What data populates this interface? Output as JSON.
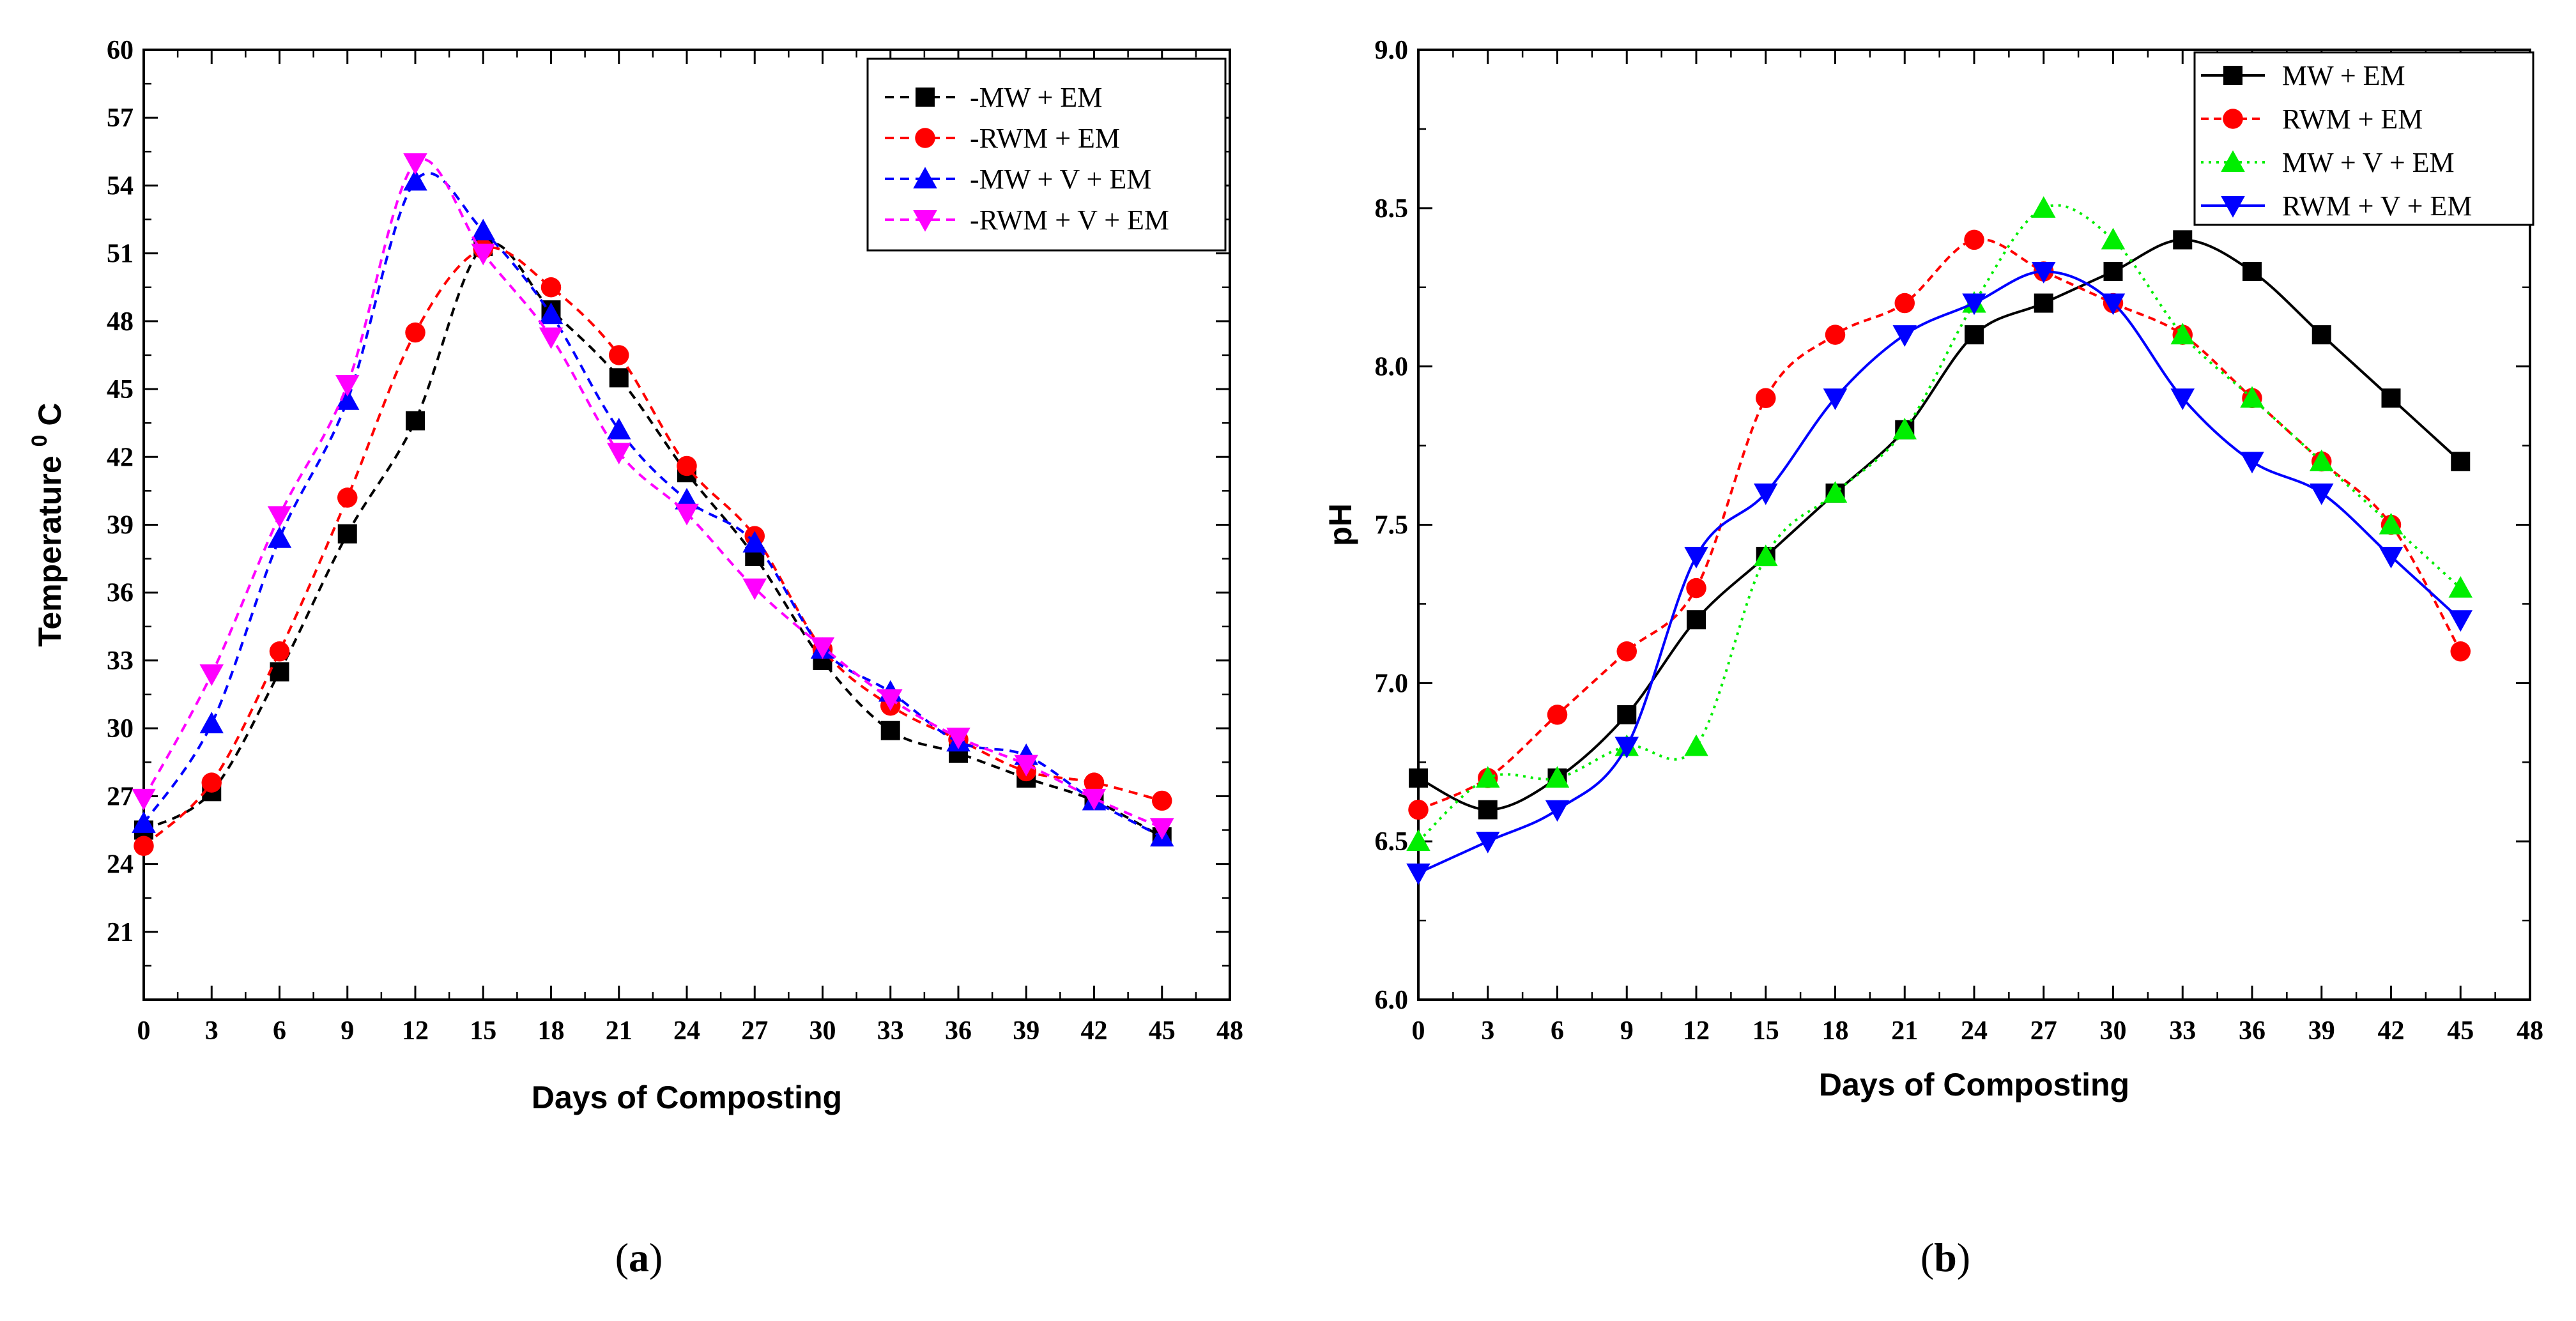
{
  "chart_data": [
    {
      "panel_label": "a",
      "type": "line",
      "xlabel": "Days of Composting",
      "ylabel": "Temperature ⁰ C",
      "ylabel_main": "Temperature",
      "ylabel_sup": "0",
      "ylabel_unit": "C",
      "xlim": [
        0,
        48
      ],
      "ylim": [
        18,
        60
      ],
      "xticks": [
        0,
        3,
        6,
        9,
        12,
        15,
        18,
        21,
        24,
        27,
        30,
        33,
        36,
        39,
        42,
        45,
        48
      ],
      "yticks": [
        21,
        24,
        27,
        30,
        33,
        36,
        39,
        42,
        45,
        48,
        51,
        54,
        57,
        60
      ],
      "grid": false,
      "legend_position": "top-right",
      "legend_style": "a",
      "series": [
        {
          "name": "MW + EM",
          "color": "#000000",
          "marker": "square",
          "dash": "14,10",
          "x": [
            0,
            3,
            6,
            9,
            12,
            15,
            18,
            21,
            24,
            27,
            30,
            33,
            36,
            39,
            42,
            45
          ],
          "values": [
            25.5,
            27.2,
            32.5,
            38.6,
            43.6,
            51.3,
            48.5,
            45.5,
            41.3,
            37.6,
            33.0,
            29.9,
            28.9,
            27.8,
            26.8,
            25.2
          ]
        },
        {
          "name": "RWM + EM",
          "color": "#ff0000",
          "marker": "circle",
          "dash": "14,10",
          "x": [
            0,
            3,
            6,
            9,
            12,
            15,
            18,
            21,
            24,
            27,
            30,
            33,
            36,
            39,
            42,
            45
          ],
          "values": [
            24.8,
            27.6,
            33.4,
            40.2,
            47.5,
            51.2,
            49.5,
            46.5,
            41.6,
            38.5,
            33.5,
            31.0,
            29.5,
            28.1,
            27.6,
            26.8
          ]
        },
        {
          "name": "MW + V + EM",
          "color": "#0000ff",
          "marker": "triangle-up",
          "dash": "14,10",
          "x": [
            0,
            3,
            6,
            9,
            12,
            15,
            18,
            21,
            24,
            27,
            30,
            33,
            36,
            39,
            42,
            45
          ],
          "values": [
            25.8,
            30.2,
            38.4,
            44.5,
            54.2,
            52.0,
            48.3,
            43.2,
            40.1,
            38.2,
            33.5,
            31.6,
            29.4,
            28.8,
            26.8,
            25.2
          ]
        },
        {
          "name": "RWM  + V + EM",
          "color": "#ff00ff",
          "marker": "triangle-down",
          "dash": "14,10",
          "x": [
            0,
            3,
            6,
            9,
            12,
            15,
            18,
            21,
            24,
            27,
            30,
            33,
            36,
            39,
            42,
            45
          ],
          "values": [
            26.9,
            32.4,
            39.4,
            45.2,
            55.0,
            51.0,
            47.3,
            42.2,
            39.5,
            36.2,
            33.6,
            31.3,
            29.6,
            28.4,
            26.9,
            25.6
          ]
        }
      ]
    },
    {
      "panel_label": "b",
      "type": "line",
      "xlabel": "Days of Composting",
      "ylabel": "pH",
      "xlim": [
        0,
        48
      ],
      "ylim": [
        6.0,
        9.0
      ],
      "xticks": [
        0,
        3,
        6,
        9,
        12,
        15,
        18,
        21,
        24,
        27,
        30,
        33,
        36,
        39,
        42,
        45,
        48
      ],
      "yticks": [
        6.0,
        6.5,
        7.0,
        7.5,
        8.0,
        8.5,
        9.0
      ],
      "grid": false,
      "legend_position": "top-right",
      "legend_style": "b",
      "series": [
        {
          "name": "MW + EM",
          "color": "#000000",
          "marker": "square",
          "dash": "",
          "x": [
            0,
            3,
            6,
            9,
            12,
            15,
            18,
            21,
            24,
            27,
            30,
            33,
            36,
            39,
            42,
            45
          ],
          "values": [
            6.7,
            6.6,
            6.7,
            6.9,
            7.2,
            7.4,
            7.6,
            7.8,
            8.1,
            8.2,
            8.3,
            8.4,
            8.3,
            8.1,
            7.9,
            7.7
          ]
        },
        {
          "name": "RWM + EM",
          "color": "#ff0000",
          "marker": "circle",
          "dash": "12,8",
          "x": [
            0,
            3,
            6,
            9,
            12,
            15,
            18,
            21,
            24,
            27,
            30,
            33,
            36,
            39,
            42,
            45
          ],
          "values": [
            6.6,
            6.7,
            6.9,
            7.1,
            7.3,
            7.9,
            8.1,
            8.2,
            8.4,
            8.3,
            8.2,
            8.1,
            7.9,
            7.7,
            7.5,
            7.1
          ]
        },
        {
          "name": "MW + V + EM",
          "color": "#00ee00",
          "marker": "triangle-up",
          "dash": "4,8",
          "x": [
            0,
            3,
            6,
            9,
            12,
            15,
            18,
            21,
            24,
            27,
            30,
            33,
            36,
            39,
            42,
            45
          ],
          "values": [
            6.5,
            6.7,
            6.7,
            6.8,
            6.8,
            7.4,
            7.6,
            7.8,
            8.2,
            8.5,
            8.4,
            8.1,
            7.9,
            7.7,
            7.5,
            7.3
          ]
        },
        {
          "name": "RWM  + V + EM",
          "color": "#0000ff",
          "marker": "triangle-down",
          "dash": "",
          "x": [
            0,
            3,
            6,
            9,
            12,
            15,
            18,
            21,
            24,
            27,
            30,
            33,
            36,
            39,
            42,
            45
          ],
          "values": [
            6.4,
            6.5,
            6.6,
            6.8,
            7.4,
            7.6,
            7.9,
            8.1,
            8.2,
            8.3,
            8.2,
            7.9,
            7.7,
            7.6,
            7.4,
            7.2
          ]
        }
      ]
    }
  ]
}
